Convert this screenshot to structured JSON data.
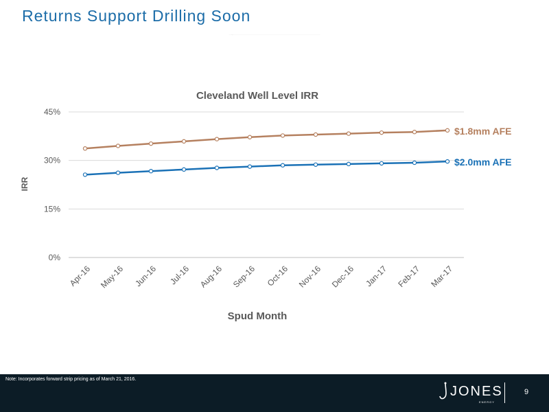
{
  "slide": {
    "title": "Returns Support Drilling Soon",
    "footer_note": "Note: Incorporates forward strip pricing as of March 21, 2016.",
    "logo_text": "JONES",
    "logo_subtext": "ENERGY",
    "page_number": "9"
  },
  "colors": {
    "title": "#1b6ca8",
    "series_1_8": "#b5805f",
    "series_2_0": "#1a71b6",
    "footer_bg": "#0c1c26",
    "gridline": "#d9d9d9",
    "axis_text": "#595959"
  },
  "chart_data": {
    "type": "line",
    "title": "Cleveland Well Level IRR",
    "xlabel": "Spud Month",
    "ylabel": "IRR",
    "categories": [
      "Apr-16",
      "May-16",
      "Jun-16",
      "Jul-16",
      "Aug-16",
      "Sep-16",
      "Oct-16",
      "Nov-16",
      "Dec-16",
      "Jan-17",
      "Feb-17",
      "Mar-17"
    ],
    "ylim": [
      0,
      45
    ],
    "yticks": [
      0,
      15,
      30,
      45
    ],
    "ytick_labels": [
      "0%",
      "15%",
      "30%",
      "45%"
    ],
    "grid": true,
    "legend": "direct labels at right end of lines",
    "series": [
      {
        "name": "$1.8mm AFE",
        "values": [
          33.7,
          34.5,
          35.2,
          35.9,
          36.6,
          37.2,
          37.7,
          38.0,
          38.3,
          38.6,
          38.8,
          39.3
        ]
      },
      {
        "name": "$2.0mm AFE",
        "values": [
          25.6,
          26.2,
          26.7,
          27.2,
          27.7,
          28.1,
          28.5,
          28.7,
          28.9,
          29.1,
          29.3,
          29.7
        ]
      }
    ]
  }
}
